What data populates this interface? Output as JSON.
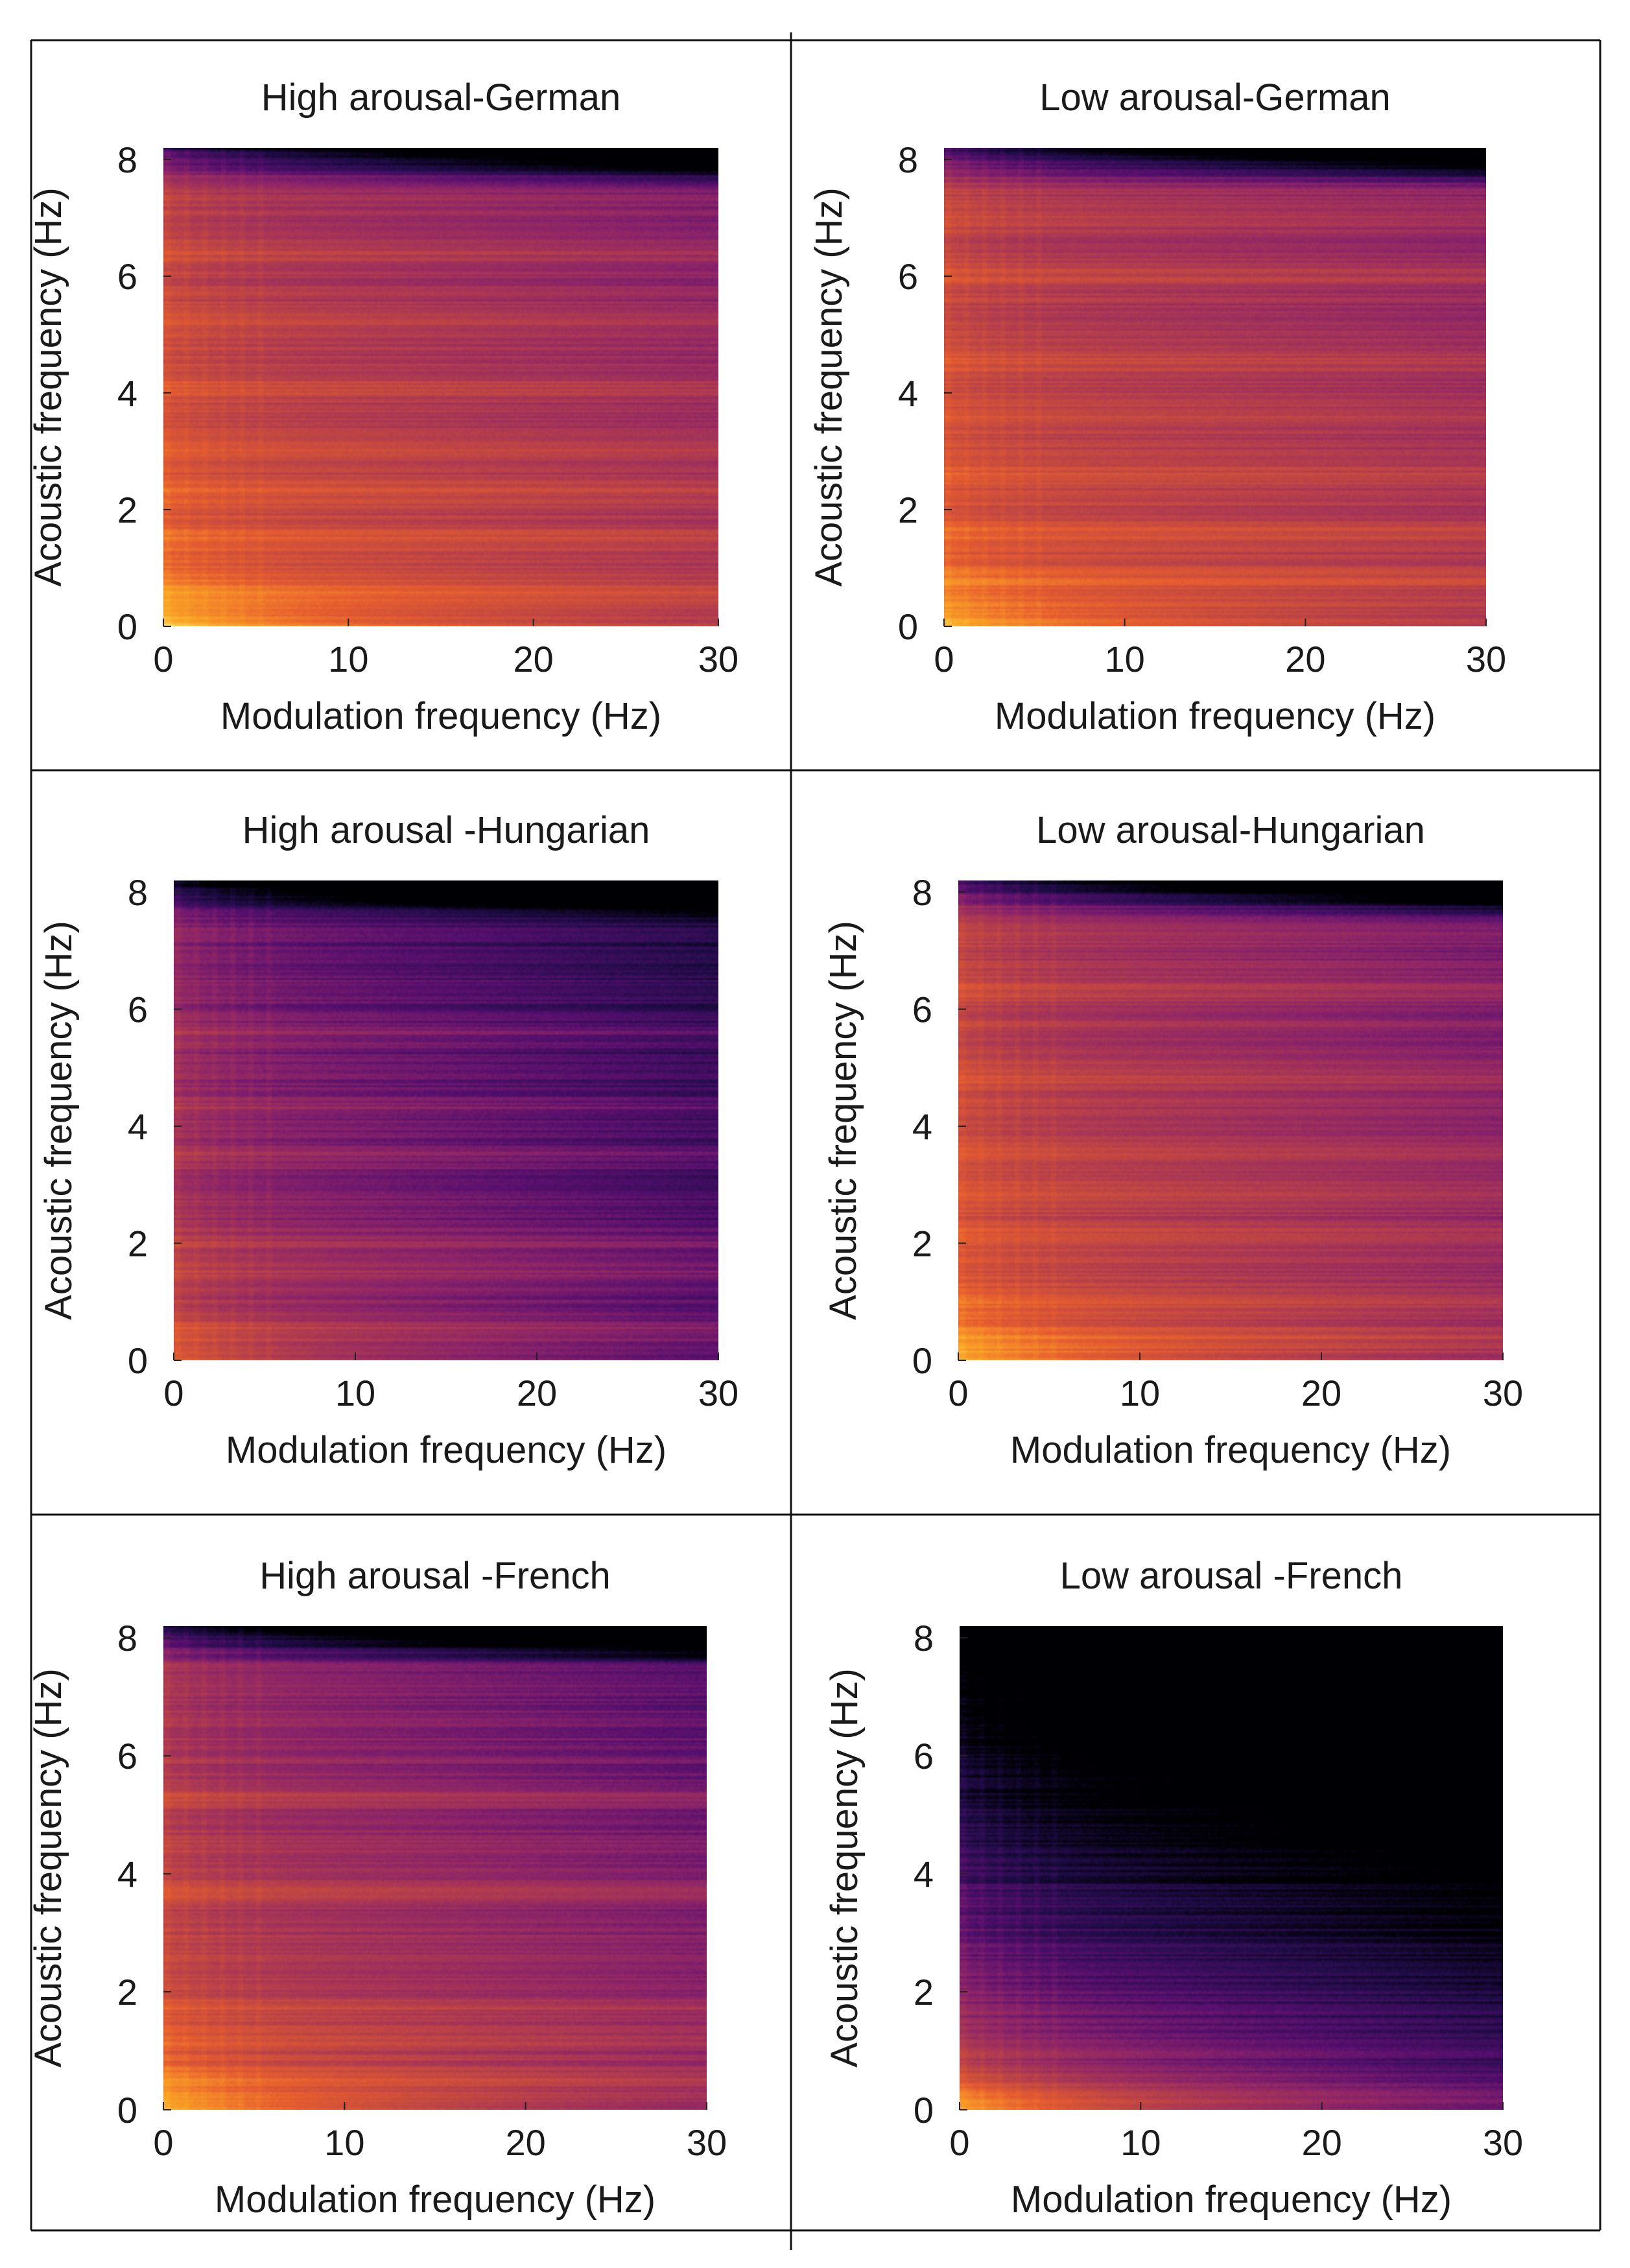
{
  "figure": {
    "colormap": "inferno",
    "colors": {
      "border": "#111111",
      "text": "#1a1a1a",
      "colormap_stops": [
        "#000004",
        "#1f0c48",
        "#550f6d",
        "#88226a",
        "#a83655",
        "#c84b3e",
        "#e65d2f",
        "#f4842a",
        "#f9a425",
        "#fbc94a",
        "#fcffa4"
      ]
    }
  },
  "chart_data": [
    {
      "type": "heatmap",
      "title": "High arousal-German",
      "xlabel": "Modulation frequency (Hz)",
      "ylabel": "Acoustic frequency (Hz)",
      "xlim": [
        0,
        30
      ],
      "ylim": [
        0,
        8.2
      ],
      "xticks": [
        0,
        10,
        20,
        30
      ],
      "yticks": [
        0,
        2,
        4,
        6,
        8
      ],
      "intensity": {
        "base": 0.54,
        "low_boost": 0.32,
        "x_decay": 0.12,
        "y_decay": 0.15,
        "top_dark": 0.6,
        "bands": [
          0.6,
          1.5,
          2.3,
          3.1,
          4.1,
          5.3,
          6.4
        ]
      }
    },
    {
      "type": "heatmap",
      "title": "Low arousal-German",
      "xlabel": "Modulation frequency (Hz)",
      "ylabel": "Acoustic frequency (Hz)",
      "xlim": [
        0,
        30
      ],
      "ylim": [
        0,
        8.2
      ],
      "xticks": [
        0,
        10,
        20,
        30
      ],
      "yticks": [
        0,
        2,
        4,
        6,
        8
      ],
      "intensity": {
        "base": 0.52,
        "low_boost": 0.3,
        "x_decay": 0.1,
        "y_decay": 0.12,
        "top_dark": 0.6,
        "bands": [
          0.8,
          1.6,
          2.6,
          3.6,
          4.5,
          6.0,
          7.0
        ]
      }
    },
    {
      "type": "heatmap",
      "title": "High arousal -Hungarian",
      "xlabel": "Modulation frequency (Hz)",
      "ylabel": "Acoustic frequency (Hz)",
      "xlim": [
        0,
        30
      ],
      "ylim": [
        0,
        8.2
      ],
      "xticks": [
        0,
        10,
        20,
        30
      ],
      "yticks": [
        0,
        2,
        4,
        6,
        8
      ],
      "intensity": {
        "base": 0.38,
        "low_boost": 0.18,
        "x_decay": 0.16,
        "y_decay": 0.14,
        "top_dark": 0.55,
        "bands": [
          0.5,
          1.5,
          2.0,
          3.5,
          4.3,
          5.6
        ]
      }
    },
    {
      "type": "heatmap",
      "title": "Low arousal-Hungarian",
      "xlabel": "Modulation frequency (Hz)",
      "ylabel": "Acoustic frequency (Hz)",
      "xlim": [
        0,
        30
      ],
      "ylim": [
        0,
        8.2
      ],
      "xticks": [
        0,
        10,
        20,
        30
      ],
      "yticks": [
        0,
        2,
        4,
        6,
        8
      ],
      "intensity": {
        "base": 0.5,
        "low_boost": 0.3,
        "x_decay": 0.14,
        "y_decay": 0.1,
        "top_dark": 0.6,
        "bands": [
          0.4,
          1.0,
          2.1,
          2.8,
          3.6,
          4.8,
          6.3
        ]
      }
    },
    {
      "type": "heatmap",
      "title": "High arousal -French",
      "xlabel": "Modulation frequency (Hz)",
      "ylabel": "Acoustic frequency (Hz)",
      "xlim": [
        0,
        30
      ],
      "ylim": [
        0,
        8.2
      ],
      "xticks": [
        0,
        10,
        20,
        30
      ],
      "yticks": [
        0,
        2,
        4,
        6,
        8
      ],
      "intensity": {
        "base": 0.48,
        "low_boost": 0.34,
        "x_decay": 0.14,
        "y_decay": 0.15,
        "top_dark": 0.6,
        "bands": [
          0.5,
          1.2,
          1.7,
          3.7,
          5.3
        ]
      }
    },
    {
      "type": "heatmap",
      "title": "Low arousal -French",
      "xlabel": "Modulation frequency (Hz)",
      "ylabel": "Acoustic frequency (Hz)",
      "xlim": [
        0,
        30
      ],
      "ylim": [
        0,
        8.2
      ],
      "xticks": [
        0,
        10,
        20,
        30
      ],
      "yticks": [
        0,
        2,
        4,
        6,
        8
      ],
      "intensity": {
        "base": 0.36,
        "low_boost": 0.38,
        "x_decay": 0.16,
        "y_decay": 0.5,
        "top_dark": 0.5,
        "bands": [
          0.2
        ]
      }
    }
  ]
}
